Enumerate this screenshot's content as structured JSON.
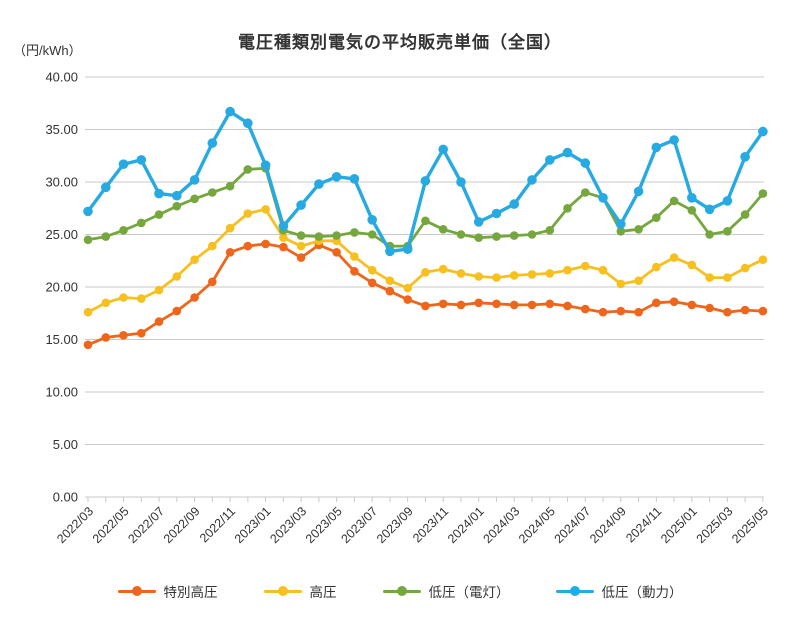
{
  "chart": {
    "title": "電圧種類別電気の平均販売単価（全国）",
    "unit_label": "（円/kWh）"
  },
  "chart_data": {
    "type": "line",
    "title": "電圧種類別電気の平均販売単価（全国）",
    "ylabel": "（円/kWh）",
    "ylim": [
      0,
      40
    ],
    "ytick_step": 5,
    "grid": true,
    "legend_position": "bottom",
    "y_tick_labels": [
      "0.00",
      "5.00",
      "10.00",
      "15.00",
      "20.00",
      "25.00",
      "30.00",
      "35.00",
      "40.00"
    ],
    "x": [
      "2022/03",
      "2022/04",
      "2022/05",
      "2022/06",
      "2022/07",
      "2022/08",
      "2022/09",
      "2022/10",
      "2022/11",
      "2022/12",
      "2023/01",
      "2023/02",
      "2023/03",
      "2023/04",
      "2023/05",
      "2023/06",
      "2023/07",
      "2023/08",
      "2023/09",
      "2023/10",
      "2023/11",
      "2023/12",
      "2024/01",
      "2024/02",
      "2024/03",
      "2024/04",
      "2024/05",
      "2024/06",
      "2024/07",
      "2024/08",
      "2024/09",
      "2024/10",
      "2024/11",
      "2024/12",
      "2025/01",
      "2025/02",
      "2025/03",
      "2025/04",
      "2025/05"
    ],
    "x_tick_labels": [
      "2022/03",
      "2022/05",
      "2022/07",
      "2022/09",
      "2022/11",
      "2023/01",
      "2023/03",
      "2023/05",
      "2023/07",
      "2023/09",
      "2023/11",
      "2024/01",
      "2024/03",
      "2024/05",
      "2024/07",
      "2024/09",
      "2024/11",
      "2025/01",
      "2025/03",
      "2025/05"
    ],
    "series": [
      {
        "name": "特別高圧",
        "color": "#ee661b",
        "width": 2.8,
        "marker_r": 4.3,
        "values": [
          14.5,
          15.2,
          15.4,
          15.6,
          16.7,
          17.7,
          19.0,
          20.5,
          23.3,
          23.9,
          24.1,
          23.8,
          22.8,
          24.0,
          23.3,
          21.5,
          20.4,
          19.6,
          18.8,
          18.2,
          18.4,
          18.3,
          18.5,
          18.4,
          18.3,
          18.3,
          18.4,
          18.2,
          17.9,
          17.6,
          17.7,
          17.6,
          18.5,
          18.6,
          18.3,
          18.0,
          17.6,
          17.8,
          17.7
        ]
      },
      {
        "name": "高圧",
        "color": "#f6c021",
        "width": 2.8,
        "marker_r": 4.3,
        "values": [
          17.6,
          18.5,
          19.0,
          18.9,
          19.7,
          21.0,
          22.6,
          23.9,
          25.6,
          27.0,
          27.4,
          24.7,
          23.9,
          24.4,
          24.4,
          22.9,
          21.6,
          20.6,
          19.9,
          21.4,
          21.7,
          21.3,
          21.0,
          20.9,
          21.1,
          21.2,
          21.3,
          21.6,
          22.0,
          21.6,
          20.3,
          20.6,
          21.9,
          22.8,
          22.1,
          20.9,
          20.9,
          21.8,
          22.6
        ]
      },
      {
        "name": "低圧（電灯）",
        "color": "#75a73e",
        "width": 2.8,
        "marker_r": 4.3,
        "values": [
          24.5,
          24.8,
          25.4,
          26.1,
          26.9,
          27.7,
          28.4,
          29.0,
          29.6,
          31.2,
          31.3,
          25.4,
          24.9,
          24.8,
          24.9,
          25.2,
          25.0,
          23.9,
          23.9,
          26.3,
          25.5,
          25.0,
          24.7,
          24.8,
          24.9,
          25.0,
          25.4,
          27.5,
          29.0,
          28.5,
          25.3,
          25.5,
          26.6,
          28.2,
          27.3,
          25.0,
          25.3,
          26.9,
          28.9
        ]
      },
      {
        "name": "低圧（動力）",
        "color": "#27a9e1",
        "width": 3.4,
        "marker_r": 4.8,
        "values": [
          27.2,
          29.5,
          31.7,
          32.1,
          28.9,
          28.7,
          30.2,
          33.7,
          36.7,
          35.6,
          31.6,
          25.8,
          27.8,
          29.8,
          30.5,
          30.3,
          26.4,
          23.4,
          23.6,
          30.1,
          33.1,
          30.0,
          26.2,
          27.0,
          27.9,
          30.2,
          32.1,
          32.8,
          31.8,
          28.5,
          26.0,
          29.1,
          33.3,
          34.0,
          28.5,
          27.4,
          28.2,
          32.4,
          34.8
        ]
      }
    ]
  }
}
